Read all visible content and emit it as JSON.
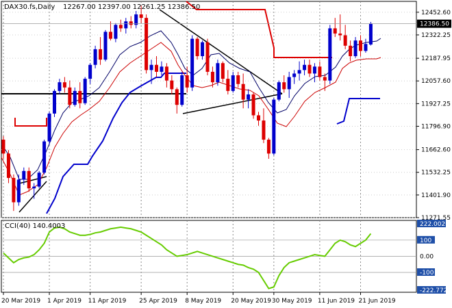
{
  "header": {
    "symbol": "DAX30.fs,Daily",
    "ohlc": "12267.00 12397.00 12261.25 12386.50"
  },
  "chart_data": {
    "type": "candlestick",
    "ylim": [
      11271.55,
      12515
    ],
    "y_ticks": [
      "12452.60",
      "12322.25",
      "12187.95",
      "12057.60",
      "11927.25",
      "11796.90",
      "11662.60",
      "11532.25",
      "11401.90",
      "11271.55"
    ],
    "x_ticks": [
      "20 Mar 2019",
      "1 Apr 2019",
      "11 Apr 2019",
      "25 Apr 2019",
      "8 May 2019",
      "20 May 2019",
      "30 May 2019",
      "11 Jun 2019",
      "21 Jun 2019"
    ],
    "x_tick_index": [
      0,
      9,
      17,
      27,
      36,
      45,
      53,
      62,
      70
    ],
    "current_price_label": "12386.50",
    "current_price": 12386.5,
    "up_color": "#0000cc",
    "down_color": "#dd0000",
    "candles": [
      [
        11720,
        11740,
        11610,
        11640
      ],
      [
        11640,
        11660,
        11470,
        11500
      ],
      [
        11500,
        11520,
        11310,
        11360
      ],
      [
        11360,
        11520,
        11340,
        11490
      ],
      [
        11490,
        11560,
        11460,
        11540
      ],
      [
        11540,
        11560,
        11420,
        11440
      ],
      [
        11440,
        11470,
        11380,
        11450
      ],
      [
        11450,
        11540,
        11440,
        11530
      ],
      [
        11530,
        11720,
        11520,
        11710
      ],
      [
        11710,
        11880,
        11690,
        11870
      ],
      [
        11870,
        12010,
        11850,
        12000
      ],
      [
        12000,
        12070,
        11980,
        12050
      ],
      [
        12050,
        12080,
        11990,
        12020
      ],
      [
        12020,
        12060,
        11900,
        11920
      ],
      [
        11920,
        12020,
        11910,
        12000
      ],
      [
        12000,
        12050,
        11900,
        11930
      ],
      [
        11930,
        12080,
        11920,
        12070
      ],
      [
        12070,
        12160,
        12040,
        12150
      ],
      [
        12150,
        12260,
        12130,
        12240
      ],
      [
        12240,
        12310,
        12150,
        12180
      ],
      [
        12180,
        12350,
        12170,
        12340
      ],
      [
        12340,
        12400,
        12290,
        12300
      ],
      [
        12300,
        12390,
        12280,
        12380
      ],
      [
        12380,
        12410,
        12340,
        12360
      ],
      [
        12360,
        12420,
        12330,
        12400
      ],
      [
        12400,
        12430,
        12360,
        12380
      ],
      [
        12380,
        12460,
        12360,
        12440
      ],
      [
        12440,
        12490,
        12390,
        12420
      ],
      [
        12420,
        12440,
        12100,
        12120
      ],
      [
        12120,
        12180,
        12040,
        12150
      ],
      [
        12150,
        12200,
        12080,
        12110
      ],
      [
        12110,
        12170,
        12090,
        12140
      ],
      [
        12140,
        12160,
        12020,
        12060
      ],
      [
        12060,
        12090,
        11980,
        12010
      ],
      [
        12010,
        12020,
        11870,
        11920
      ],
      [
        11920,
        12110,
        11910,
        12090
      ],
      [
        12090,
        12140,
        11990,
        12020
      ],
      [
        12020,
        12320,
        12000,
        12300
      ],
      [
        12300,
        12310,
        12180,
        12200
      ],
      [
        12200,
        12290,
        12180,
        12280
      ],
      [
        12280,
        12300,
        12090,
        12110
      ],
      [
        12110,
        12140,
        12020,
        12050
      ],
      [
        12050,
        12180,
        12030,
        12160
      ],
      [
        12160,
        12170,
        12050,
        12070
      ],
      [
        12070,
        12120,
        11980,
        12000
      ],
      [
        12000,
        12110,
        11990,
        12090
      ],
      [
        12090,
        12110,
        12020,
        12040
      ],
      [
        12040,
        12100,
        11900,
        11950
      ],
      [
        11950,
        12010,
        11900,
        11980
      ],
      [
        11980,
        11990,
        11840,
        11860
      ],
      [
        11860,
        11880,
        11800,
        11830
      ],
      [
        11830,
        11900,
        11700,
        11720
      ],
      [
        11720,
        11730,
        11610,
        11640
      ],
      [
        11640,
        11960,
        11630,
        11950
      ],
      [
        11950,
        12060,
        11940,
        12050
      ],
      [
        12050,
        12090,
        11990,
        12010
      ],
      [
        12010,
        12110,
        11960,
        12080
      ],
      [
        12080,
        12120,
        12040,
        12100
      ],
      [
        12100,
        12170,
        12060,
        12120
      ],
      [
        12120,
        12180,
        12090,
        12150
      ],
      [
        12150,
        12180,
        12080,
        12100
      ],
      [
        12100,
        12160,
        12050,
        12140
      ],
      [
        12140,
        12170,
        12060,
        12080
      ],
      [
        12080,
        12100,
        12000,
        12060
      ],
      [
        12060,
        12380,
        12040,
        12360
      ],
      [
        12360,
        12420,
        12310,
        12330
      ],
      [
        12330,
        12440,
        12290,
        12320
      ],
      [
        12320,
        12380,
        12240,
        12260
      ],
      [
        12260,
        12290,
        12170,
        12200
      ],
      [
        12200,
        12310,
        12190,
        12290
      ],
      [
        12290,
        12320,
        12200,
        12230
      ],
      [
        12230,
        12300,
        12220,
        12270
      ],
      [
        12267,
        12397,
        12261,
        12386.5
      ]
    ],
    "cci": {
      "label": "CCI(40) 140.4003",
      "ylim": [
        -222.7726,
        222.0026
      ],
      "ticks": [
        "222.0026",
        "100",
        "0.00",
        "-100",
        "-222.7726"
      ],
      "tick_values": [
        222.0026,
        100,
        0,
        -100,
        -222.7726
      ],
      "tag_ticks": [
        "222.0026",
        "100",
        "-100",
        "-222.7726"
      ],
      "line_color": "#66cc00",
      "values": [
        20,
        -10,
        -40,
        -20,
        -10,
        -5,
        10,
        40,
        80,
        150,
        175,
        180,
        170,
        150,
        140,
        130,
        130,
        135,
        145,
        150,
        160,
        170,
        175,
        180,
        175,
        170,
        160,
        150,
        130,
        110,
        90,
        70,
        40,
        20,
        0,
        5,
        10,
        20,
        30,
        20,
        10,
        0,
        -10,
        -20,
        -30,
        -40,
        -50,
        -55,
        -70,
        -80,
        -100,
        -150,
        -200,
        -190,
        -120,
        -70,
        -40,
        -30,
        -20,
        -10,
        0,
        10,
        5,
        0,
        40,
        80,
        100,
        90,
        70,
        60,
        80,
        100,
        140
      ]
    }
  }
}
